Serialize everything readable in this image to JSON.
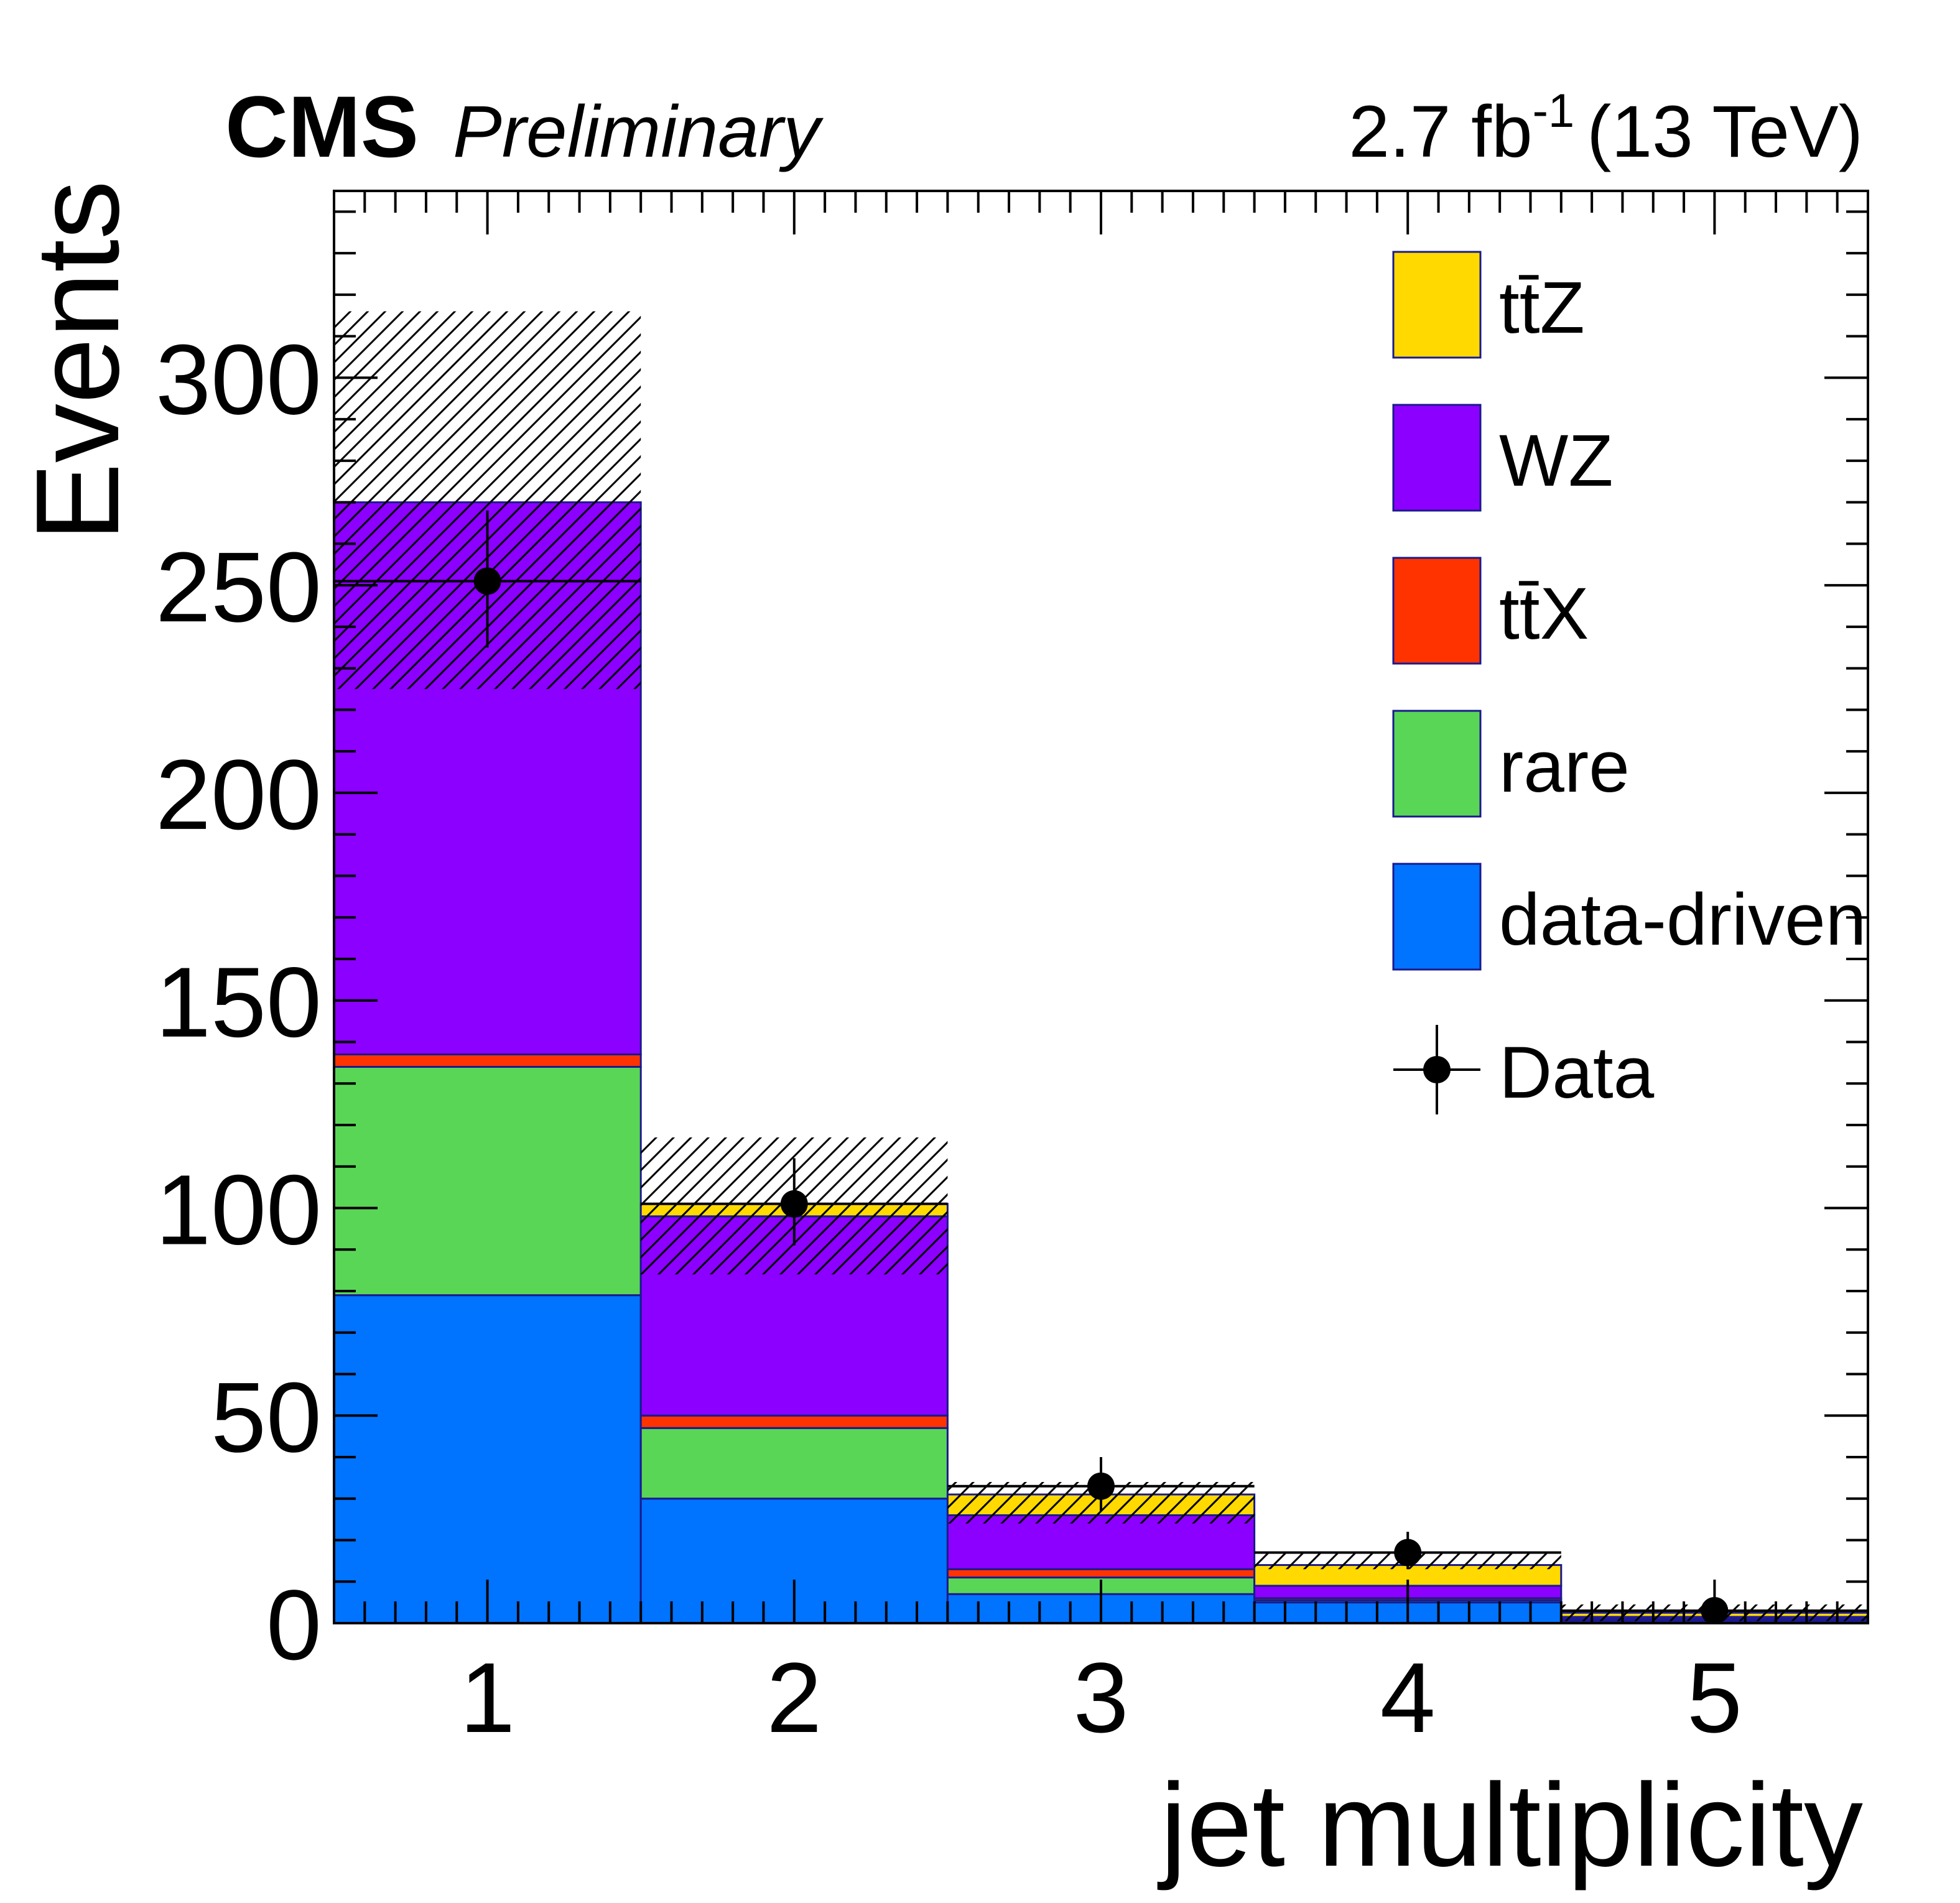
{
  "header": {
    "experiment": "CMS",
    "status": "Preliminary",
    "lumi_value": "2.7 fb",
    "lumi_exp": "-1",
    "energy": "(13 TeV)"
  },
  "chart_data": {
    "type": "bar",
    "stacked": true,
    "xlabel": "jet multiplicity",
    "ylabel": "Events",
    "categories": [
      "1",
      "2",
      "3",
      "4",
      "5"
    ],
    "xlim": [
      0.5,
      5.5
    ],
    "ylim": [
      0,
      345
    ],
    "yticks": [
      0,
      50,
      100,
      150,
      200,
      250,
      300
    ],
    "series": [
      {
        "name": "data-driven",
        "color": "#0073ff",
        "values": [
          79,
          30,
          7,
          5,
          0.5
        ]
      },
      {
        "name": "rare",
        "color": "#5ad657",
        "values": [
          55,
          17,
          4,
          0.5,
          0.3
        ]
      },
      {
        "name": "tt̄X",
        "color": "#ff3300",
        "values": [
          3,
          3,
          2,
          0.5,
          0.2
        ]
      },
      {
        "name": "WZ",
        "color": "#8c00ff",
        "values": [
          133,
          48,
          13,
          3,
          0.5
        ]
      },
      {
        "name": "tt̄Z",
        "color": "#ffd900",
        "values": [
          0,
          3,
          5,
          5,
          1
        ]
      }
    ],
    "uncertainty": {
      "label": "hatched band",
      "down": [
        225,
        84,
        24,
        13,
        0.5
      ],
      "up": [
        316,
        117,
        34,
        17,
        4.5
      ]
    },
    "data": {
      "name": "Data",
      "values": [
        251,
        101,
        33,
        17,
        3
      ],
      "err_low": [
        16,
        10,
        6,
        4,
        2
      ],
      "err_high": [
        17,
        11,
        7,
        5,
        3
      ]
    },
    "legend": {
      "placement": "top-right",
      "order": [
        "tt̄Z",
        "WZ",
        "tt̄X",
        "rare",
        "data-driven",
        "Data"
      ]
    }
  }
}
